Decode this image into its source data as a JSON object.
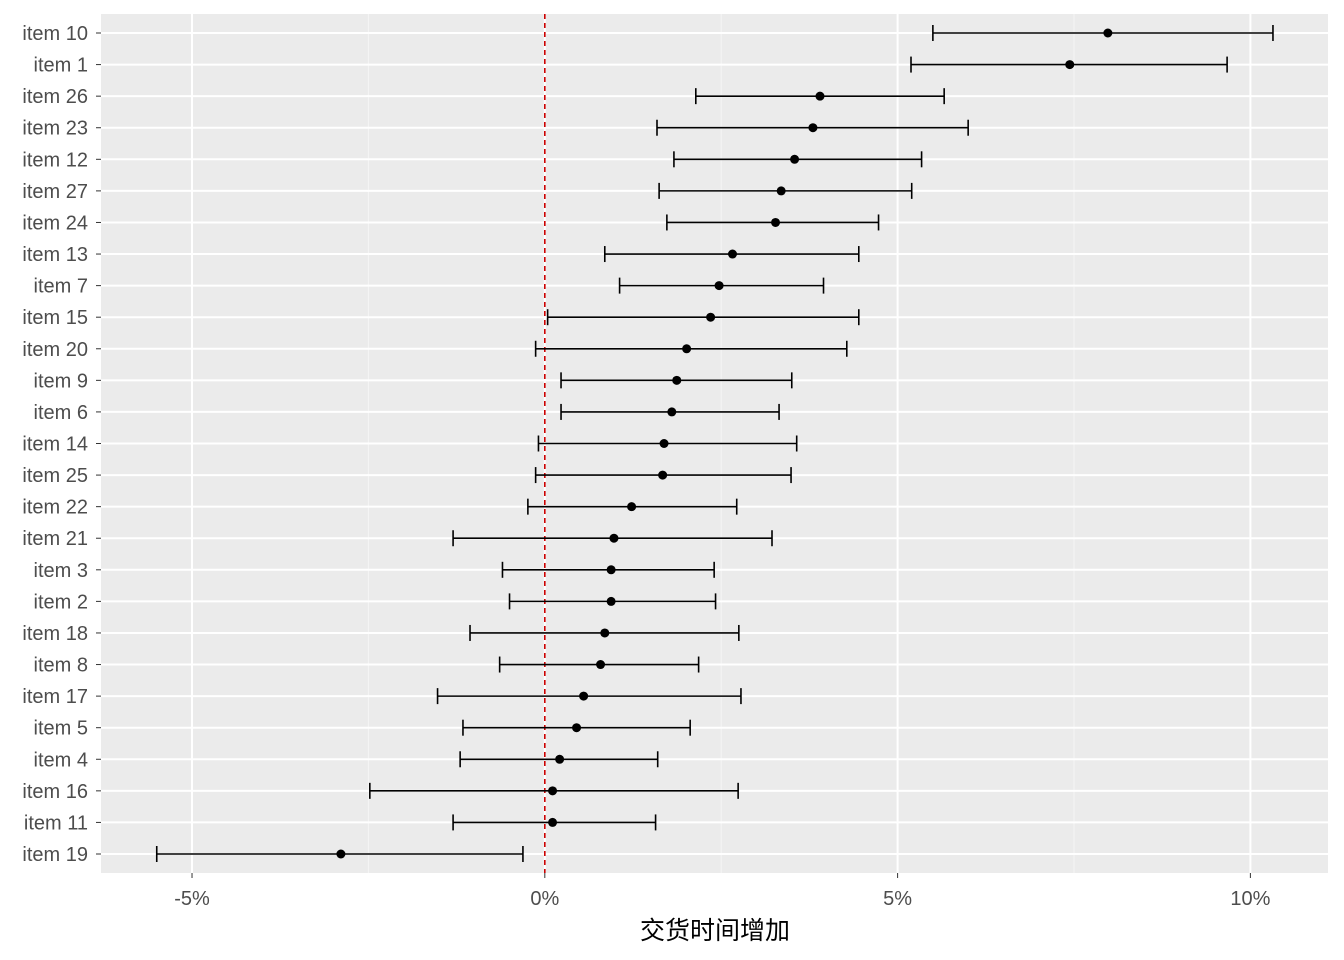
{
  "chart_data": {
    "type": "errorbar",
    "title": "",
    "xlabel": "交货时间增加",
    "ylabel": "",
    "xlim": [
      -6.29,
      11.1
    ],
    "x_ticks": [
      -5,
      0,
      5,
      10
    ],
    "x_tick_labels": [
      "-5%",
      "0%",
      "5%",
      "10%"
    ],
    "reference_line": {
      "x": 0,
      "color": "#cc0000",
      "style": "dashed"
    },
    "grid": true,
    "background": "#ebebeb",
    "items": [
      {
        "label": "item 10",
        "estimate": 7.98,
        "low": 5.5,
        "high": 10.32
      },
      {
        "label": "item 1",
        "estimate": 7.44,
        "low": 5.19,
        "high": 9.67
      },
      {
        "label": "item 26",
        "estimate": 3.9,
        "low": 2.14,
        "high": 5.66
      },
      {
        "label": "item 23",
        "estimate": 3.8,
        "low": 1.59,
        "high": 6.0
      },
      {
        "label": "item 12",
        "estimate": 3.54,
        "low": 1.83,
        "high": 5.34
      },
      {
        "label": "item 27",
        "estimate": 3.35,
        "low": 1.62,
        "high": 5.2
      },
      {
        "label": "item 24",
        "estimate": 3.27,
        "low": 1.73,
        "high": 4.73
      },
      {
        "label": "item 13",
        "estimate": 2.66,
        "low": 0.85,
        "high": 4.45
      },
      {
        "label": "item 7",
        "estimate": 2.47,
        "low": 1.06,
        "high": 3.95
      },
      {
        "label": "item 15",
        "estimate": 2.35,
        "low": 0.04,
        "high": 4.45
      },
      {
        "label": "item 20",
        "estimate": 2.01,
        "low": -0.13,
        "high": 4.28
      },
      {
        "label": "item 9",
        "estimate": 1.87,
        "low": 0.23,
        "high": 3.5
      },
      {
        "label": "item 6",
        "estimate": 1.8,
        "low": 0.23,
        "high": 3.32
      },
      {
        "label": "item 14",
        "estimate": 1.69,
        "low": -0.09,
        "high": 3.57
      },
      {
        "label": "item 25",
        "estimate": 1.67,
        "low": -0.13,
        "high": 3.49
      },
      {
        "label": "item 22",
        "estimate": 1.23,
        "low": -0.24,
        "high": 2.72
      },
      {
        "label": "item 21",
        "estimate": 0.98,
        "low": -1.3,
        "high": 3.22
      },
      {
        "label": "item 3",
        "estimate": 0.94,
        "low": -0.6,
        "high": 2.4
      },
      {
        "label": "item 2",
        "estimate": 0.94,
        "low": -0.5,
        "high": 2.42
      },
      {
        "label": "item 18",
        "estimate": 0.85,
        "low": -1.06,
        "high": 2.75
      },
      {
        "label": "item 8",
        "estimate": 0.79,
        "low": -0.64,
        "high": 2.18
      },
      {
        "label": "item 17",
        "estimate": 0.55,
        "low": -1.52,
        "high": 2.78
      },
      {
        "label": "item 5",
        "estimate": 0.45,
        "low": -1.16,
        "high": 2.06
      },
      {
        "label": "item 4",
        "estimate": 0.21,
        "low": -1.2,
        "high": 1.6
      },
      {
        "label": "item 16",
        "estimate": 0.11,
        "low": -2.48,
        "high": 2.74
      },
      {
        "label": "item 11",
        "estimate": 0.11,
        "low": -1.3,
        "high": 1.57
      },
      {
        "label": "item 19",
        "estimate": -2.89,
        "low": -5.5,
        "high": -0.31
      }
    ]
  }
}
